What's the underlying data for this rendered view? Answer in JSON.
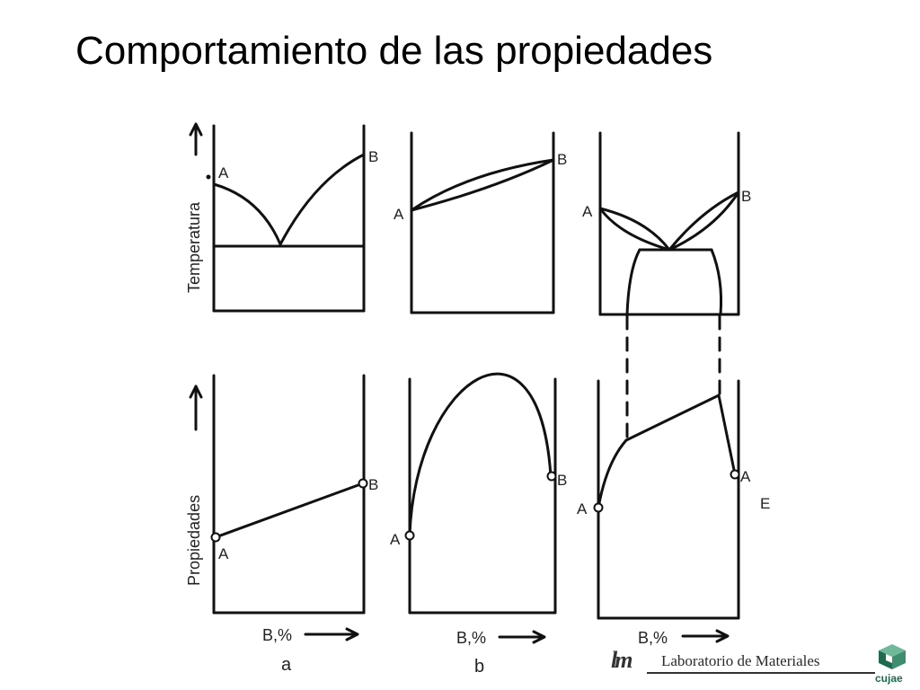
{
  "title": "Comportamiento de las propiedades",
  "diagram": {
    "y_label_top": "Temperatura",
    "y_label_bottom": "Propiedades",
    "x_labels": [
      "B,%",
      "B,%",
      "B,%"
    ],
    "panel_letters": [
      "a",
      "b"
    ],
    "point_labels": {
      "a_top_A": "A",
      "a_top_B": "B",
      "b_top_A": "A",
      "b_top_B": "B",
      "c_top_A": "A",
      "c_top_B": "B",
      "a_bot_A": "A",
      "a_bot_B": "B",
      "b_bot_A": "A",
      "b_bot_B": "B",
      "c_bot_A1": "A",
      "c_bot_A2": "A",
      "edge_mark": "E"
    }
  },
  "footer": {
    "lab_logo": "lm",
    "lab_name": "Laboratorio de Materiales",
    "cujae": "cujae"
  },
  "colors": {
    "line": "#111111",
    "cujae_green": "#1e6a4f"
  }
}
